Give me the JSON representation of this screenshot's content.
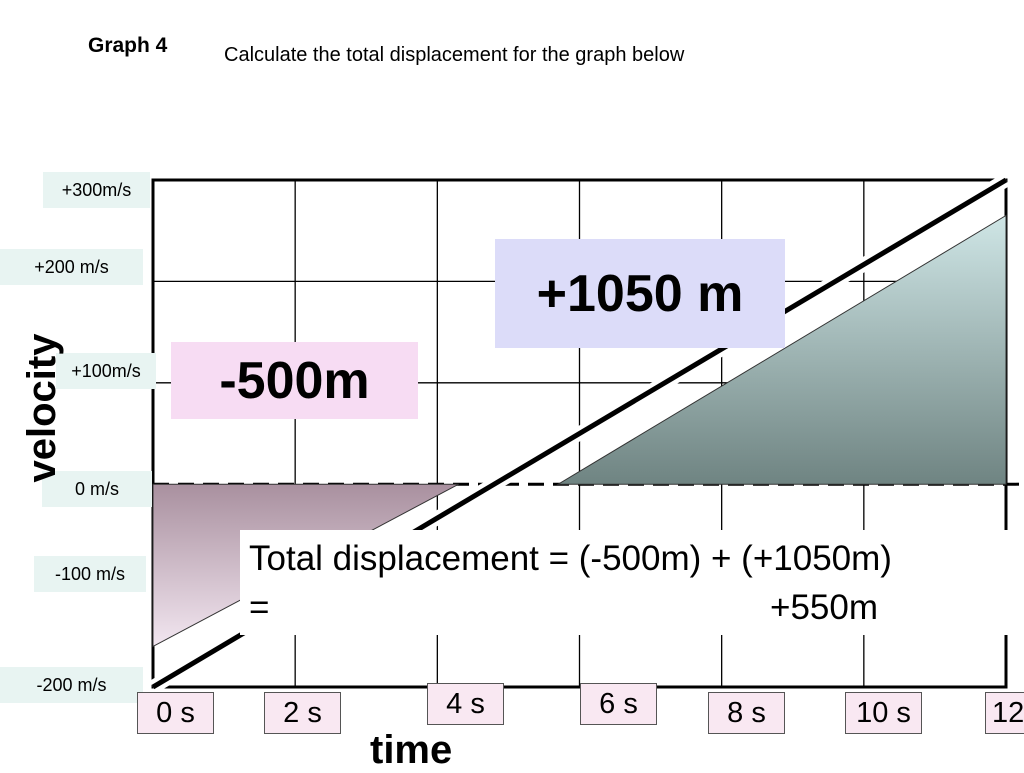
{
  "header": {
    "graph_label": "Graph 4",
    "instruction": "Calculate the total displacement for the graph below"
  },
  "chart_data": {
    "type": "line",
    "xlabel": "time",
    "ylabel": "velocity",
    "x_ticks": [
      "0 s",
      "2 s",
      "4 s",
      "6 s",
      "8 s",
      "10 s",
      "12"
    ],
    "y_ticks": [
      "+300m/s",
      "+200 m/s",
      "+100m/s",
      "0 m/s",
      "-100 m/s",
      "-200 m/s"
    ],
    "xlim": [
      0,
      12
    ],
    "ylim": [
      -200,
      300
    ],
    "grid": true,
    "series": [
      {
        "x": [
          0,
          12
        ],
        "y": [
          -200,
          300
        ]
      }
    ],
    "areas": [
      {
        "label": "-500m",
        "x": [
          0,
          0,
          4.3
        ],
        "y": [
          0,
          -160,
          0
        ],
        "color": "#b79fb4"
      },
      {
        "label": "+1050 m",
        "x": [
          5.7,
          12,
          12
        ],
        "y": [
          0,
          0,
          265
        ],
        "color": "#8faaa8"
      }
    ],
    "colors": {
      "line": "#000000",
      "negative_area": "#b79fb4",
      "positive_area": "#8faaa8",
      "negative_label_bg": "#f7dcf3",
      "positive_label_bg": "#dcdcf9",
      "tick_bg_y": "#e8f4f2",
      "tick_bg_x": "#f9e8f2"
    },
    "annotation": {
      "line1": "Total displacement = (-500m) + (+1050m)",
      "equals": "=",
      "result": "+550m"
    }
  }
}
